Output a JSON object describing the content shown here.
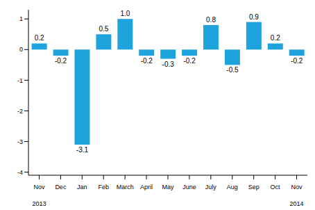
{
  "chart_data": {
    "type": "bar",
    "categories": [
      "Nov",
      "Dec",
      "Jan",
      "Feb",
      "March",
      "April",
      "May",
      "June",
      "July",
      "Aug",
      "Sep",
      "Oct",
      "Nov"
    ],
    "years": [
      "2013",
      null,
      null,
      null,
      null,
      null,
      null,
      null,
      null,
      null,
      null,
      null,
      "2014"
    ],
    "values": [
      0.2,
      -0.2,
      -3.1,
      0.5,
      1.0,
      -0.2,
      -0.3,
      -0.2,
      0.8,
      -0.5,
      0.9,
      0.2,
      -0.2
    ],
    "value_labels": [
      "0.2",
      "-0.2",
      "-3.1",
      "0.5",
      "1.0",
      "-0.2",
      "-0.3",
      "-0.2",
      "0.8",
      "-0.5",
      "0.9",
      "0.2",
      "-0.2"
    ],
    "color": "#1fa3dc",
    "ylim": [
      -4.1,
      1.3
    ],
    "yticks": [
      -4,
      -3,
      -2,
      -1,
      0,
      1
    ],
    "grid": false,
    "data_labels": true
  }
}
